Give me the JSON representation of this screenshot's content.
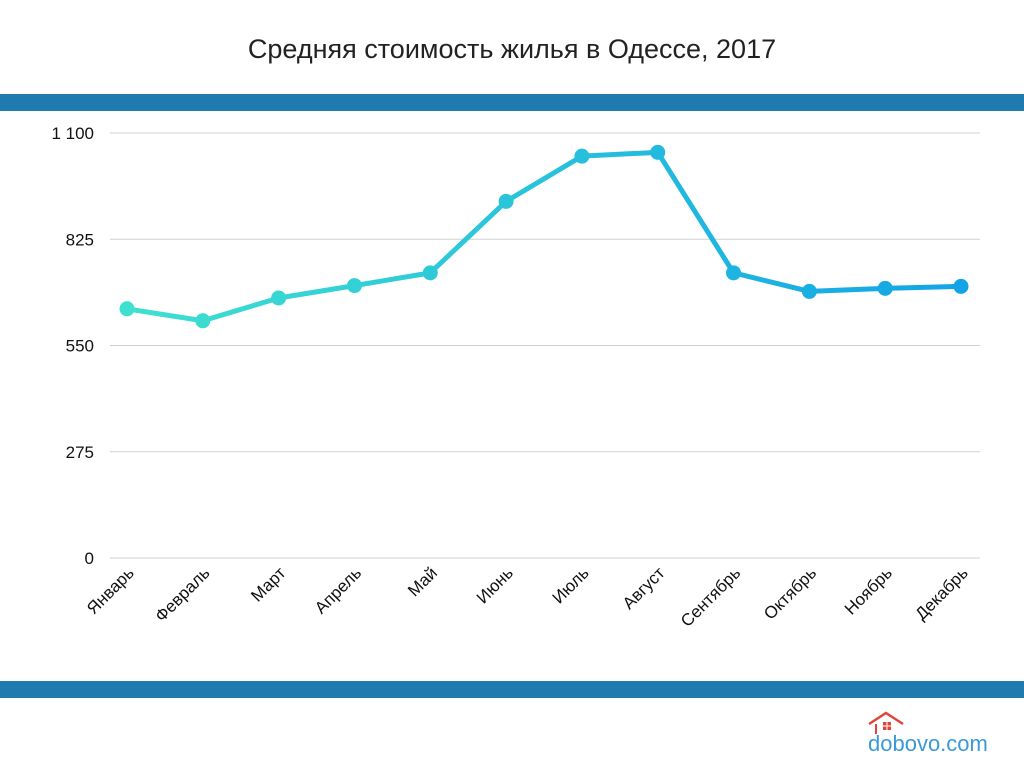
{
  "chart_data": {
    "type": "line",
    "title": "Средняя стоимость жилья в Одессе, 2017",
    "xlabel": "",
    "ylabel": "",
    "categories": [
      "Январь",
      "Февраль",
      "Март",
      "Апрель",
      "Май",
      "Июнь",
      "Июль",
      "Август",
      "Сентябрь",
      "Октябрь",
      "Ноябрь",
      "Декабрь"
    ],
    "series": [
      {
        "values": [
          645,
          614,
          673,
          705,
          738,
          923,
          1040,
          1050,
          738,
          690,
          698,
          703
        ]
      }
    ],
    "ylim": [
      0,
      1100
    ],
    "yticks": [
      0,
      275,
      550,
      825,
      1100
    ],
    "ytick_labels": [
      "0",
      "275",
      "550",
      "825",
      "1 100"
    ],
    "grid": true,
    "legend": "none",
    "line_gradient": [
      "#3fe0d0",
      "#12a4e6"
    ],
    "band_color": "#1f7aaf",
    "grid_color": "#d0d0d0"
  },
  "logo": {
    "text": "dobovo.com",
    "color": "#3a9ad9",
    "roof_color": "#e0453a"
  }
}
